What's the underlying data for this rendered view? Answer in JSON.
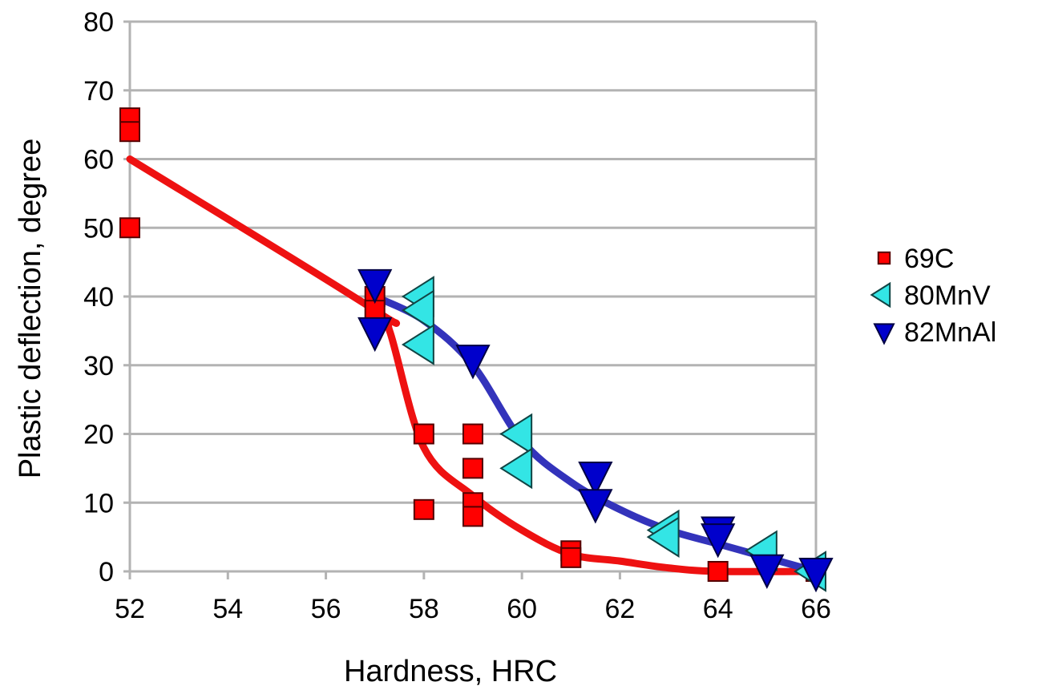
{
  "chart_data": {
    "type": "scatter",
    "title": "",
    "xlabel": "Hardness, HRC",
    "ylabel": "Plastic deflection, degree",
    "xlim": [
      52,
      66
    ],
    "ylim": [
      0,
      80
    ],
    "xticks": [
      52,
      54,
      56,
      58,
      60,
      62,
      64,
      66
    ],
    "yticks": [
      0,
      10,
      20,
      30,
      40,
      50,
      60,
      70,
      80
    ],
    "grid": "horizontal",
    "legend_position": "right",
    "series": [
      {
        "name": "69C",
        "marker": "square",
        "color": "#ff0000",
        "points": [
          [
            52,
            66
          ],
          [
            52,
            64
          ],
          [
            52,
            50
          ],
          [
            57,
            40
          ],
          [
            57,
            38
          ],
          [
            58,
            20
          ],
          [
            58,
            9
          ],
          [
            59,
            20
          ],
          [
            59,
            15
          ],
          [
            59,
            10
          ],
          [
            59,
            8
          ],
          [
            61,
            3
          ],
          [
            61,
            2
          ],
          [
            64,
            0
          ],
          [
            66,
            0
          ]
        ],
        "trend": [
          [
            52,
            60
          ],
          [
            57,
            38
          ],
          [
            57.3,
            35
          ],
          [
            58,
            18
          ],
          [
            59,
            11
          ],
          [
            60,
            6
          ],
          [
            61,
            2.5
          ],
          [
            62,
            1.5
          ],
          [
            63,
            0.5
          ],
          [
            64,
            0
          ],
          [
            66,
            0
          ]
        ]
      },
      {
        "name": "80MnV",
        "marker": "triangle-left",
        "color": "#33e5e5",
        "points": [
          [
            58,
            40
          ],
          [
            58,
            38
          ],
          [
            58,
            33
          ],
          [
            60,
            20
          ],
          [
            60,
            15
          ],
          [
            63,
            6
          ],
          [
            63,
            5
          ],
          [
            65,
            3
          ],
          [
            66,
            0
          ]
        ]
      },
      {
        "name": "82MnAl",
        "marker": "triangle-down",
        "color": "#0000cc",
        "points": [
          [
            57,
            42
          ],
          [
            57,
            35
          ],
          [
            59,
            31
          ],
          [
            61.5,
            14
          ],
          [
            61.5,
            10
          ],
          [
            64,
            6
          ],
          [
            64,
            5
          ],
          [
            65,
            0.5
          ],
          [
            66,
            0
          ]
        ],
        "trend": [
          [
            57,
            40
          ],
          [
            58,
            36.5
          ],
          [
            59,
            30
          ],
          [
            60,
            19
          ],
          [
            61,
            13
          ],
          [
            62,
            9
          ],
          [
            63,
            6
          ],
          [
            64,
            4
          ],
          [
            65,
            2
          ],
          [
            66,
            0
          ]
        ]
      }
    ],
    "trend_colors": {
      "69C": "#ee1111",
      "82MnAl": "#3333bb"
    }
  }
}
